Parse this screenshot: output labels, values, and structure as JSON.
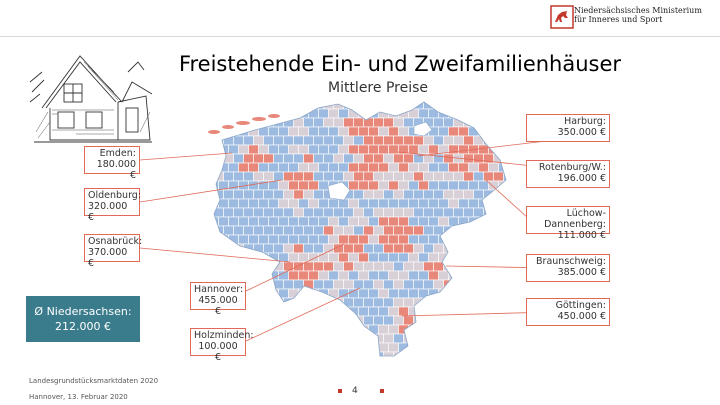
{
  "header": {
    "ministry_line1": "Niedersächsisches Ministerium",
    "ministry_line2": "für Inneres und Sport"
  },
  "title": "Freistehende Ein- und Zweifamilienhäuser",
  "subtitle": "Mittlere Preise",
  "labels": {
    "harburg": {
      "name": "Harburg:",
      "price": "350.000 €"
    },
    "emden": {
      "name": "Emden:",
      "price": "180.000 €"
    },
    "rotenburg": {
      "name": "Rotenburg/W.:",
      "price": "196.000 €"
    },
    "oldenburg": {
      "name": "Oldenburg:",
      "price": "320.000 €"
    },
    "luechow": {
      "name": "Lüchow-Dannenberg:",
      "price": "111.000 €"
    },
    "osnabrueck": {
      "name": "Osnabrück:",
      "price": "370.000 €"
    },
    "braunschweig": {
      "name": "Braunschweig:",
      "price": "385.000 €"
    },
    "hannover": {
      "name": "Hannover:",
      "price": "455.000 €"
    },
    "goettingen": {
      "name": "Göttingen:",
      "price": "450.000 €"
    },
    "holzminden": {
      "name": "Holzminden:",
      "price": "100.000 €"
    }
  },
  "average": {
    "line1": "Ø Niedersachsen:",
    "line2": "212.000 €"
  },
  "footer": {
    "source": "Landesgrundstücksmarktdaten 2020",
    "place_date": "Hannover, 13. Februar 2020"
  },
  "page_number": "4",
  "colors": {
    "high": "#e8887a",
    "mid": "#d9cfd6",
    "low": "#9dbbe0",
    "leader": "#e06a58",
    "average_box": "#3a7b8c"
  }
}
